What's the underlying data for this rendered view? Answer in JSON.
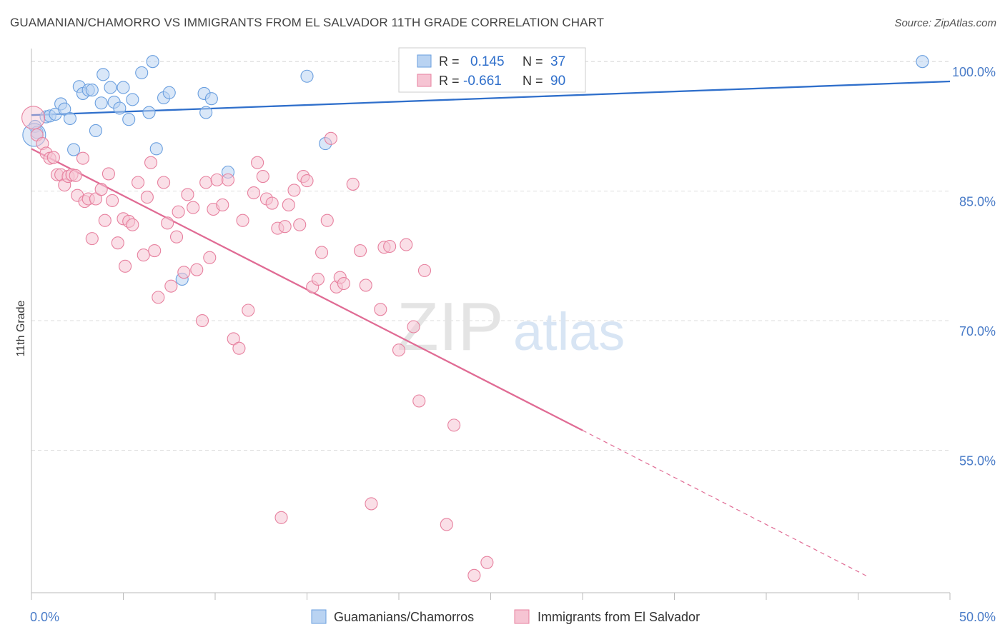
{
  "title": "GUAMANIAN/CHAMORRO VS IMMIGRANTS FROM EL SALVADOR 11TH GRADE CORRELATION CHART",
  "source": "Source: ZipAtlas.com",
  "watermark": {
    "zip": "ZIP",
    "atlas": "atlas"
  },
  "colors": {
    "blue": "#6a9fdf",
    "blue_fill": "#b9d3f2",
    "blue_line": "#2f6fcb",
    "pink": "#e7819f",
    "pink_fill": "#f6c4d3",
    "pink_line": "#e06b94",
    "tick_label": "#4a7cc8",
    "grid": "#dddddd"
  },
  "chart_data": {
    "type": "scatter",
    "xlabel": "",
    "ylabel": "11th Grade",
    "xlim": [
      0,
      50
    ],
    "ylim": [
      38.5,
      102
    ],
    "x_tick_labels": [
      {
        "value": 0,
        "label": "0.0%"
      },
      {
        "value": 50,
        "label": "50.0%"
      }
    ],
    "x_minor_ticks": [
      0,
      5,
      10,
      15,
      20,
      25,
      30,
      35,
      40,
      45,
      50
    ],
    "y_ticks": [
      {
        "value": 100,
        "label": "100.0%"
      },
      {
        "value": 85,
        "label": "85.0%"
      },
      {
        "value": 70,
        "label": "70.0%"
      },
      {
        "value": 55,
        "label": "55.0%"
      }
    ],
    "legend_stats": [
      {
        "r_label": "R =",
        "r_value": "0.145",
        "n_label": "N =",
        "n_value": "37"
      },
      {
        "r_label": "R =",
        "r_value": "-0.661",
        "n_label": "N =",
        "n_value": "90"
      }
    ],
    "series": [
      {
        "name": "Guamanians/Chamorros",
        "color": "blue",
        "trend": {
          "x1": 0,
          "y1": 93.8,
          "x2": 50,
          "y2": 97.7
        },
        "points": [
          [
            0.2,
            92.5
          ],
          [
            0.3,
            91.8
          ],
          [
            0.8,
            93.6
          ],
          [
            1.0,
            93.7
          ],
          [
            1.3,
            93.9
          ],
          [
            1.6,
            95.1
          ],
          [
            1.8,
            94.5
          ],
          [
            2.1,
            93.4
          ],
          [
            2.3,
            89.8
          ],
          [
            2.6,
            97.1
          ],
          [
            2.8,
            96.3
          ],
          [
            3.1,
            96.7
          ],
          [
            3.3,
            96.7
          ],
          [
            3.5,
            92.0
          ],
          [
            3.8,
            95.2
          ],
          [
            3.9,
            98.5
          ],
          [
            4.3,
            97.0
          ],
          [
            4.5,
            95.3
          ],
          [
            4.8,
            94.6
          ],
          [
            5.0,
            97.0
          ],
          [
            5.3,
            93.3
          ],
          [
            5.5,
            95.6
          ],
          [
            6.0,
            98.7
          ],
          [
            6.4,
            94.1
          ],
          [
            6.6,
            100.0
          ],
          [
            6.8,
            89.9
          ],
          [
            7.2,
            95.8
          ],
          [
            7.5,
            96.4
          ],
          [
            8.2,
            74.8
          ],
          [
            9.4,
            96.3
          ],
          [
            9.5,
            94.1
          ],
          [
            9.8,
            95.7
          ],
          [
            10.7,
            87.2
          ],
          [
            15.0,
            98.3
          ],
          [
            16.0,
            90.5
          ],
          [
            48.5,
            100.0
          ],
          [
            0.15,
            91.5
          ]
        ]
      },
      {
        "name": "Immigrants from El Salvador",
        "color": "pink",
        "trend": {
          "x1": 0,
          "y1": 89.9,
          "x2": 30.0,
          "y2": 57.3
        },
        "dashed": {
          "x1": 30.0,
          "y1": 57.3,
          "x2": 45.5,
          "y2": 40.4
        },
        "points": [
          [
            0.1,
            93.5
          ],
          [
            0.3,
            91.5
          ],
          [
            0.6,
            90.5
          ],
          [
            0.8,
            89.4
          ],
          [
            1.0,
            88.8
          ],
          [
            1.2,
            88.9
          ],
          [
            1.4,
            86.9
          ],
          [
            1.6,
            86.9
          ],
          [
            1.8,
            85.7
          ],
          [
            2.0,
            86.7
          ],
          [
            2.2,
            86.9
          ],
          [
            2.5,
            84.5
          ],
          [
            2.8,
            88.8
          ],
          [
            2.9,
            83.8
          ],
          [
            3.1,
            84.1
          ],
          [
            3.3,
            79.5
          ],
          [
            3.5,
            84.1
          ],
          [
            3.8,
            85.2
          ],
          [
            4.0,
            81.6
          ],
          [
            4.2,
            87.0
          ],
          [
            4.4,
            83.9
          ],
          [
            4.7,
            79.0
          ],
          [
            5.0,
            81.8
          ],
          [
            5.1,
            76.3
          ],
          [
            5.3,
            81.5
          ],
          [
            5.5,
            81.1
          ],
          [
            5.8,
            86.0
          ],
          [
            6.1,
            77.6
          ],
          [
            6.3,
            84.3
          ],
          [
            6.5,
            88.3
          ],
          [
            6.7,
            78.1
          ],
          [
            6.9,
            72.7
          ],
          [
            7.2,
            86.0
          ],
          [
            7.4,
            81.3
          ],
          [
            7.6,
            74.0
          ],
          [
            7.9,
            79.7
          ],
          [
            8.0,
            82.6
          ],
          [
            8.3,
            75.6
          ],
          [
            8.5,
            84.6
          ],
          [
            8.8,
            83.1
          ],
          [
            9.0,
            75.9
          ],
          [
            9.3,
            70.0
          ],
          [
            9.5,
            86.0
          ],
          [
            9.7,
            77.3
          ],
          [
            9.9,
            82.9
          ],
          [
            10.1,
            86.3
          ],
          [
            10.4,
            83.4
          ],
          [
            10.7,
            86.3
          ],
          [
            11.0,
            67.9
          ],
          [
            11.3,
            66.8
          ],
          [
            11.5,
            81.6
          ],
          [
            11.8,
            71.2
          ],
          [
            12.1,
            84.8
          ],
          [
            12.3,
            88.3
          ],
          [
            12.6,
            86.7
          ],
          [
            12.8,
            84.1
          ],
          [
            13.1,
            83.6
          ],
          [
            13.4,
            80.7
          ],
          [
            13.6,
            47.2
          ],
          [
            13.8,
            80.9
          ],
          [
            14.0,
            83.4
          ],
          [
            14.3,
            85.1
          ],
          [
            14.6,
            81.1
          ],
          [
            14.8,
            86.7
          ],
          [
            15.0,
            86.2
          ],
          [
            15.3,
            73.9
          ],
          [
            15.6,
            74.8
          ],
          [
            15.8,
            77.9
          ],
          [
            16.1,
            81.6
          ],
          [
            16.3,
            91.1
          ],
          [
            16.6,
            73.9
          ],
          [
            16.8,
            75.0
          ],
          [
            17.0,
            74.3
          ],
          [
            17.5,
            85.8
          ],
          [
            17.9,
            78.1
          ],
          [
            18.2,
            74.1
          ],
          [
            18.5,
            48.8
          ],
          [
            19.0,
            71.3
          ],
          [
            19.2,
            78.5
          ],
          [
            19.5,
            78.6
          ],
          [
            20.0,
            66.6
          ],
          [
            20.4,
            78.8
          ],
          [
            20.8,
            69.3
          ],
          [
            21.1,
            60.7
          ],
          [
            21.4,
            75.8
          ],
          [
            22.6,
            46.4
          ],
          [
            23.0,
            57.9
          ],
          [
            24.1,
            40.5
          ],
          [
            24.8,
            42.0
          ],
          [
            2.4,
            86.8
          ]
        ]
      }
    ]
  }
}
